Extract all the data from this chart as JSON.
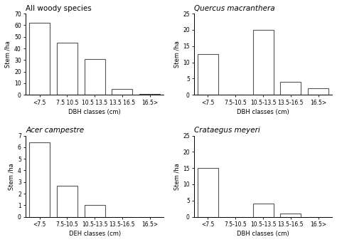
{
  "subplots": [
    {
      "title": "All woody species",
      "title_style": "normal",
      "categories": [
        "<7.5",
        "7.5 10.5",
        "10.5 13.5",
        "13.5 16.5",
        "16.5>"
      ],
      "values": [
        62,
        45,
        31,
        5,
        1
      ],
      "ylim": [
        0,
        70
      ],
      "yticks": [
        0,
        10,
        20,
        30,
        40,
        50,
        60,
        70
      ],
      "ylabel": "Stem /ha",
      "xlabel": "DBH classes (cm)"
    },
    {
      "title": "Quercus macranthera",
      "title_style": "italic",
      "categories": [
        "<7.5",
        "7.5-10.5",
        "10.5-13.5",
        "13.5-16.5",
        "16.5>"
      ],
      "values": [
        12.5,
        0,
        20,
        4,
        2
      ],
      "ylim": [
        0,
        25
      ],
      "yticks": [
        0,
        5,
        10,
        15,
        20,
        25
      ],
      "ylabel": "Stem /ha",
      "xlabel": "DBH classes (cm)"
    },
    {
      "title": "Acer campestre",
      "title_style": "italic",
      "categories": [
        "<7.5",
        "7.5-10.5",
        "10.5-13.5",
        "13.5-16.5",
        "16.5>"
      ],
      "values": [
        6.4,
        2.7,
        1.05,
        0,
        0
      ],
      "ylim": [
        0,
        7
      ],
      "yticks": [
        0,
        1,
        2,
        3,
        4,
        5,
        6,
        7
      ],
      "ylabel": "Stem /ha",
      "xlabel": "DEH classes (cm)"
    },
    {
      "title": "Crataegus meyeri",
      "title_style": "italic",
      "categories": [
        "<7.5",
        "7.5-10.5",
        "10.5-13.5",
        "13.5-16.5",
        "16.5>"
      ],
      "values": [
        15,
        0,
        4,
        1,
        0
      ],
      "ylim": [
        0,
        25
      ],
      "yticks": [
        0,
        5,
        10,
        15,
        20,
        25
      ],
      "ylabel": "Stem /ha",
      "xlabel": "DBH classes (cm)"
    }
  ],
  "bar_color": "white",
  "bar_edgecolor": "#555555",
  "bar_width": 0.75,
  "bg_color": "white",
  "tick_fontsize": 5.5,
  "label_fontsize": 6,
  "title_fontsize": 7.5
}
